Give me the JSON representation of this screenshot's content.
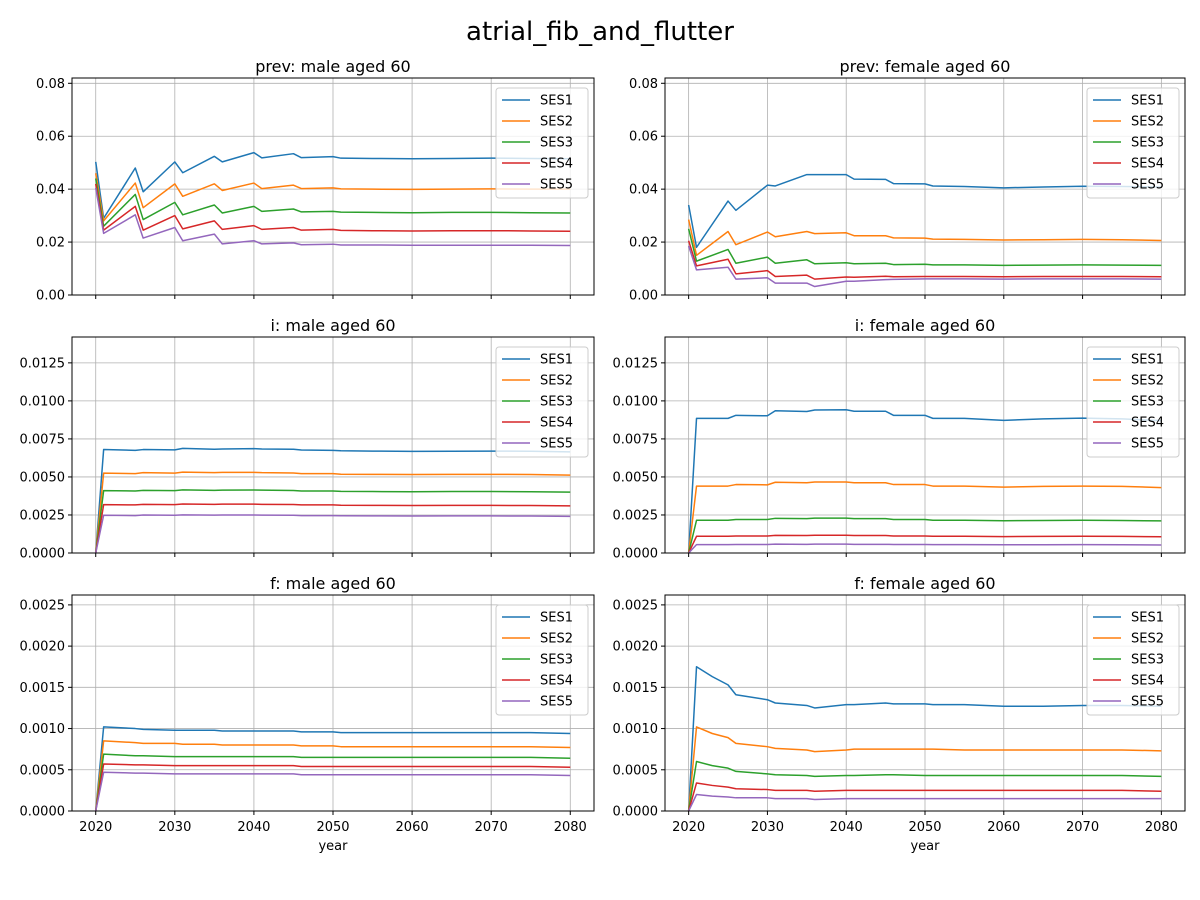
{
  "figure": {
    "suptitle": "atrial_fib_and_flutter"
  },
  "colors": {
    "SES1": "#1f77b4",
    "SES2": "#ff7f0e",
    "SES3": "#2ca02c",
    "SES4": "#d62728",
    "SES5": "#9467bd"
  },
  "chart_data": [
    {
      "type": "line",
      "title": "prev: male aged 60",
      "xlabel": "",
      "xlim": [
        2017,
        2083
      ],
      "ylim": [
        0,
        0.082
      ],
      "xticks": [
        "2020",
        "2030",
        "2040",
        "2050",
        "2060",
        "2070",
        "2080"
      ],
      "yticks": [
        "0.00",
        "0.02",
        "0.04",
        "0.06",
        "0.08"
      ],
      "grid": true,
      "legend": "top-right",
      "x": [
        2020,
        2021,
        2025,
        2026,
        2030,
        2031,
        2035,
        2036,
        2040,
        2041,
        2045,
        2046,
        2050,
        2051,
        2055,
        2060,
        2065,
        2070,
        2075,
        2080
      ],
      "series": [
        {
          "name": "SES1",
          "values": [
            0.0503,
            0.029,
            0.048,
            0.039,
            0.0503,
            0.0462,
            0.0524,
            0.0503,
            0.0538,
            0.0518,
            0.0534,
            0.0519,
            0.0523,
            0.0517,
            0.0516,
            0.0515,
            0.0516,
            0.0517,
            0.0516,
            0.0515
          ]
        },
        {
          "name": "SES2",
          "values": [
            0.046,
            0.028,
            0.0423,
            0.033,
            0.042,
            0.0373,
            0.042,
            0.0395,
            0.0423,
            0.0402,
            0.0415,
            0.0402,
            0.0405,
            0.0401,
            0.04,
            0.0399,
            0.04,
            0.0401,
            0.04,
            0.04
          ]
        },
        {
          "name": "SES3",
          "values": [
            0.044,
            0.026,
            0.038,
            0.0285,
            0.035,
            0.0303,
            0.034,
            0.031,
            0.0335,
            0.0316,
            0.0325,
            0.0314,
            0.0316,
            0.0313,
            0.0312,
            0.0311,
            0.0312,
            0.0312,
            0.0311,
            0.031
          ]
        },
        {
          "name": "SES4",
          "values": [
            0.042,
            0.0245,
            0.0335,
            0.0245,
            0.03,
            0.025,
            0.028,
            0.0248,
            0.0262,
            0.0248,
            0.0255,
            0.0245,
            0.0248,
            0.0244,
            0.0243,
            0.0242,
            0.0243,
            0.0243,
            0.0242,
            0.0241
          ]
        },
        {
          "name": "SES5",
          "values": [
            0.0405,
            0.0233,
            0.0303,
            0.0215,
            0.0255,
            0.0205,
            0.023,
            0.0193,
            0.0205,
            0.0193,
            0.0197,
            0.019,
            0.0192,
            0.0189,
            0.0189,
            0.0188,
            0.0188,
            0.0188,
            0.0188,
            0.0187
          ]
        }
      ]
    },
    {
      "type": "line",
      "title": "prev: female aged 60",
      "xlabel": "",
      "xlim": [
        2017,
        2083
      ],
      "ylim": [
        0,
        0.082
      ],
      "xticks": [
        "2020",
        "2030",
        "2040",
        "2050",
        "2060",
        "2070",
        "2080"
      ],
      "yticks": [
        "0.00",
        "0.02",
        "0.04",
        "0.06",
        "0.08"
      ],
      "grid": true,
      "legend": "top-right",
      "x": [
        2020,
        2021,
        2025,
        2026,
        2030,
        2031,
        2035,
        2036,
        2040,
        2041,
        2045,
        2046,
        2050,
        2051,
        2055,
        2060,
        2065,
        2070,
        2075,
        2080
      ],
      "series": [
        {
          "name": "SES1",
          "values": [
            0.034,
            0.018,
            0.0355,
            0.032,
            0.0415,
            0.0412,
            0.0455,
            0.0455,
            0.0455,
            0.0438,
            0.0437,
            0.0421,
            0.042,
            0.0412,
            0.041,
            0.0405,
            0.0408,
            0.0411,
            0.041,
            0.0408
          ]
        },
        {
          "name": "SES2",
          "values": [
            0.0285,
            0.015,
            0.024,
            0.019,
            0.0238,
            0.022,
            0.024,
            0.0232,
            0.0235,
            0.0224,
            0.0224,
            0.0216,
            0.0215,
            0.0211,
            0.021,
            0.0208,
            0.0209,
            0.021,
            0.0209,
            0.0206
          ]
        },
        {
          "name": "SES3",
          "values": [
            0.025,
            0.0128,
            0.0172,
            0.012,
            0.0143,
            0.012,
            0.0133,
            0.0118,
            0.0122,
            0.0118,
            0.012,
            0.0115,
            0.0116,
            0.0114,
            0.0114,
            0.0112,
            0.0113,
            0.0114,
            0.0113,
            0.0112
          ]
        },
        {
          "name": "SES4",
          "values": [
            0.0205,
            0.011,
            0.0135,
            0.008,
            0.0092,
            0.007,
            0.0075,
            0.006,
            0.0068,
            0.0067,
            0.0071,
            0.0069,
            0.007,
            0.007,
            0.007,
            0.0069,
            0.007,
            0.007,
            0.007,
            0.0069
          ]
        },
        {
          "name": "SES5",
          "values": [
            0.0185,
            0.0095,
            0.0105,
            0.006,
            0.0065,
            0.0045,
            0.0045,
            0.0032,
            0.0052,
            0.0052,
            0.0058,
            0.0059,
            0.0061,
            0.0061,
            0.0061,
            0.006,
            0.0061,
            0.0061,
            0.0061,
            0.006
          ]
        }
      ]
    },
    {
      "type": "line",
      "title": "i: male aged 60",
      "xlabel": "",
      "xlim": [
        2017,
        2083
      ],
      "ylim": [
        0,
        0.0142
      ],
      "xticks": [
        "2020",
        "2030",
        "2040",
        "2050",
        "2060",
        "2070",
        "2080"
      ],
      "yticks": [
        "0.0000",
        "0.0025",
        "0.0050",
        "0.0075",
        "0.0100",
        "0.0125"
      ],
      "grid": true,
      "legend": "top-right",
      "x": [
        2020,
        2021,
        2025,
        2026,
        2030,
        2031,
        2035,
        2036,
        2040,
        2041,
        2045,
        2046,
        2050,
        2051,
        2055,
        2060,
        2065,
        2070,
        2075,
        2080
      ],
      "series": [
        {
          "name": "SES1",
          "values": [
            0.0,
            0.0068,
            0.00675,
            0.0068,
            0.00678,
            0.00688,
            0.00682,
            0.00684,
            0.00686,
            0.00684,
            0.00682,
            0.00677,
            0.00675,
            0.00672,
            0.0067,
            0.00668,
            0.00669,
            0.0067,
            0.00669,
            0.00665
          ]
        },
        {
          "name": "SES2",
          "values": [
            0.0,
            0.00525,
            0.00522,
            0.00528,
            0.00525,
            0.00532,
            0.00528,
            0.0053,
            0.0053,
            0.00528,
            0.00526,
            0.00522,
            0.00522,
            0.00518,
            0.00517,
            0.00516,
            0.00517,
            0.00517,
            0.00516,
            0.00512
          ]
        },
        {
          "name": "SES3",
          "values": [
            0.0,
            0.0041,
            0.00408,
            0.00412,
            0.0041,
            0.00415,
            0.00412,
            0.00413,
            0.00414,
            0.00413,
            0.00411,
            0.00408,
            0.00408,
            0.00405,
            0.00404,
            0.00403,
            0.00404,
            0.00404,
            0.00403,
            0.004
          ]
        },
        {
          "name": "SES4",
          "values": [
            0.0,
            0.00318,
            0.00316,
            0.0032,
            0.00318,
            0.00322,
            0.0032,
            0.00321,
            0.00321,
            0.0032,
            0.00319,
            0.00316,
            0.00316,
            0.00314,
            0.00313,
            0.00312,
            0.00313,
            0.00313,
            0.00312,
            0.0031
          ]
        },
        {
          "name": "SES5",
          "values": [
            0.0,
            0.00248,
            0.00246,
            0.0025,
            0.00248,
            0.00251,
            0.00249,
            0.0025,
            0.0025,
            0.00249,
            0.00248,
            0.00246,
            0.00246,
            0.00245,
            0.00244,
            0.00243,
            0.00244,
            0.00244,
            0.00243,
            0.00241
          ]
        }
      ]
    },
    {
      "type": "line",
      "title": "i: female aged 60",
      "xlabel": "",
      "xlim": [
        2017,
        2083
      ],
      "ylim": [
        0,
        0.0142
      ],
      "xticks": [
        "2020",
        "2030",
        "2040",
        "2050",
        "2060",
        "2070",
        "2080"
      ],
      "yticks": [
        "0.0000",
        "0.0025",
        "0.0050",
        "0.0075",
        "0.0100",
        "0.0125"
      ],
      "grid": true,
      "legend": "top-right",
      "x": [
        2020,
        2021,
        2025,
        2026,
        2030,
        2031,
        2035,
        2036,
        2040,
        2041,
        2045,
        2046,
        2050,
        2051,
        2055,
        2060,
        2065,
        2070,
        2075,
        2080
      ],
      "series": [
        {
          "name": "SES1",
          "values": [
            0.0,
            0.00885,
            0.00885,
            0.00905,
            0.00902,
            0.00935,
            0.0093,
            0.0094,
            0.00942,
            0.00932,
            0.00932,
            0.00905,
            0.00905,
            0.00885,
            0.00885,
            0.00872,
            0.00882,
            0.00887,
            0.00882,
            0.0087
          ]
        },
        {
          "name": "SES2",
          "values": [
            0.0,
            0.0044,
            0.0044,
            0.0045,
            0.00448,
            0.00465,
            0.00462,
            0.00467,
            0.00467,
            0.00462,
            0.00462,
            0.0045,
            0.0045,
            0.0044,
            0.0044,
            0.00433,
            0.00438,
            0.0044,
            0.00438,
            0.0043
          ]
        },
        {
          "name": "SES3",
          "values": [
            0.0,
            0.00215,
            0.00215,
            0.0022,
            0.0022,
            0.00228,
            0.00226,
            0.00229,
            0.00229,
            0.00226,
            0.00226,
            0.0022,
            0.0022,
            0.00215,
            0.00215,
            0.00212,
            0.00214,
            0.00215,
            0.00214,
            0.00211
          ]
        },
        {
          "name": "SES4",
          "values": [
            0.0,
            0.0011,
            0.0011,
            0.00112,
            0.00112,
            0.00116,
            0.00115,
            0.00117,
            0.00117,
            0.00115,
            0.00115,
            0.00112,
            0.00112,
            0.0011,
            0.0011,
            0.00108,
            0.00109,
            0.0011,
            0.00109,
            0.00107
          ]
        },
        {
          "name": "SES5",
          "values": [
            0.0,
            0.00055,
            0.00055,
            0.00056,
            0.00056,
            0.00058,
            0.00057,
            0.00058,
            0.00058,
            0.00057,
            0.00057,
            0.00056,
            0.00056,
            0.00055,
            0.00055,
            0.00054,
            0.00054,
            0.00055,
            0.00054,
            0.00053
          ]
        }
      ]
    },
    {
      "type": "line",
      "title": "f: male aged 60",
      "xlabel": "year",
      "xlim": [
        2017,
        2083
      ],
      "ylim": [
        0,
        0.00262
      ],
      "xticks": [
        "2020",
        "2030",
        "2040",
        "2050",
        "2060",
        "2070",
        "2080"
      ],
      "yticks": [
        "0.0000",
        "0.0005",
        "0.0010",
        "0.0015",
        "0.0020",
        "0.0025"
      ],
      "grid": true,
      "legend": "top-right",
      "x": [
        2020,
        2021,
        2025,
        2026,
        2030,
        2031,
        2035,
        2036,
        2040,
        2041,
        2045,
        2046,
        2050,
        2051,
        2055,
        2060,
        2065,
        2070,
        2075,
        2080
      ],
      "series": [
        {
          "name": "SES1",
          "values": [
            0.0,
            0.00102,
            0.001,
            0.00099,
            0.00098,
            0.00098,
            0.00098,
            0.00097,
            0.00097,
            0.00097,
            0.00097,
            0.00096,
            0.00096,
            0.00095,
            0.00095,
            0.00095,
            0.00095,
            0.00095,
            0.00095,
            0.00094
          ]
        },
        {
          "name": "SES2",
          "values": [
            0.0,
            0.00085,
            0.00083,
            0.00082,
            0.00082,
            0.00081,
            0.00081,
            0.0008,
            0.0008,
            0.0008,
            0.0008,
            0.00079,
            0.00079,
            0.00078,
            0.00078,
            0.00078,
            0.00078,
            0.00078,
            0.00078,
            0.00077
          ]
        },
        {
          "name": "SES3",
          "values": [
            0.0,
            0.00069,
            0.00067,
            0.00067,
            0.00066,
            0.00066,
            0.00066,
            0.00066,
            0.00066,
            0.00066,
            0.00066,
            0.00065,
            0.00065,
            0.00065,
            0.00065,
            0.00065,
            0.00065,
            0.00065,
            0.00065,
            0.00064
          ]
        },
        {
          "name": "SES4",
          "values": [
            0.0,
            0.00057,
            0.00056,
            0.00056,
            0.00055,
            0.00055,
            0.00055,
            0.00055,
            0.00055,
            0.00055,
            0.00055,
            0.00054,
            0.00054,
            0.00054,
            0.00054,
            0.00054,
            0.00054,
            0.00054,
            0.00054,
            0.00053
          ]
        },
        {
          "name": "SES5",
          "values": [
            0.0,
            0.00047,
            0.00046,
            0.00046,
            0.00045,
            0.00045,
            0.00045,
            0.00045,
            0.00045,
            0.00045,
            0.00045,
            0.00044,
            0.00044,
            0.00044,
            0.00044,
            0.00044,
            0.00044,
            0.00044,
            0.00044,
            0.00043
          ]
        }
      ]
    },
    {
      "type": "line",
      "title": "f: female aged 60",
      "xlabel": "year",
      "xlim": [
        2017,
        2083
      ],
      "ylim": [
        0,
        0.00262
      ],
      "xticks": [
        "2020",
        "2030",
        "2040",
        "2050",
        "2060",
        "2070",
        "2080"
      ],
      "yticks": [
        "0.0000",
        "0.0005",
        "0.0010",
        "0.0015",
        "0.0020",
        "0.0025"
      ],
      "grid": true,
      "legend": "top-right",
      "x": [
        2020,
        2021,
        2023,
        2025,
        2026,
        2030,
        2031,
        2035,
        2036,
        2040,
        2041,
        2045,
        2046,
        2050,
        2051,
        2055,
        2060,
        2065,
        2070,
        2075,
        2080
      ],
      "series": [
        {
          "name": "SES1",
          "values": [
            0.0,
            0.00175,
            0.00163,
            0.00153,
            0.00141,
            0.00135,
            0.00131,
            0.00128,
            0.00125,
            0.00129,
            0.00129,
            0.00131,
            0.0013,
            0.0013,
            0.00129,
            0.00129,
            0.00127,
            0.00127,
            0.00128,
            0.00128,
            0.00127
          ]
        },
        {
          "name": "SES2",
          "values": [
            0.0,
            0.00102,
            0.00094,
            0.00089,
            0.00082,
            0.00078,
            0.00076,
            0.00074,
            0.00072,
            0.00074,
            0.00075,
            0.00075,
            0.00075,
            0.00075,
            0.00075,
            0.00074,
            0.00074,
            0.00074,
            0.00074,
            0.00074,
            0.00073
          ]
        },
        {
          "name": "SES3",
          "values": [
            0.0,
            0.0006,
            0.00055,
            0.00052,
            0.00048,
            0.00045,
            0.00044,
            0.00043,
            0.00042,
            0.00043,
            0.00043,
            0.00044,
            0.00044,
            0.00043,
            0.00043,
            0.00043,
            0.00043,
            0.00043,
            0.00043,
            0.00043,
            0.00042
          ]
        },
        {
          "name": "SES4",
          "values": [
            0.0,
            0.00034,
            0.00031,
            0.00029,
            0.00027,
            0.00026,
            0.00025,
            0.00025,
            0.00024,
            0.00025,
            0.00025,
            0.00025,
            0.00025,
            0.00025,
            0.00025,
            0.00025,
            0.00025,
            0.00025,
            0.00025,
            0.00025,
            0.00024
          ]
        },
        {
          "name": "SES5",
          "values": [
            0.0,
            0.0002,
            0.00018,
            0.00017,
            0.00016,
            0.00016,
            0.00015,
            0.00015,
            0.00014,
            0.00015,
            0.00015,
            0.00015,
            0.00015,
            0.00015,
            0.00015,
            0.00015,
            0.00015,
            0.00015,
            0.00015,
            0.00015,
            0.00015
          ]
        }
      ]
    }
  ]
}
